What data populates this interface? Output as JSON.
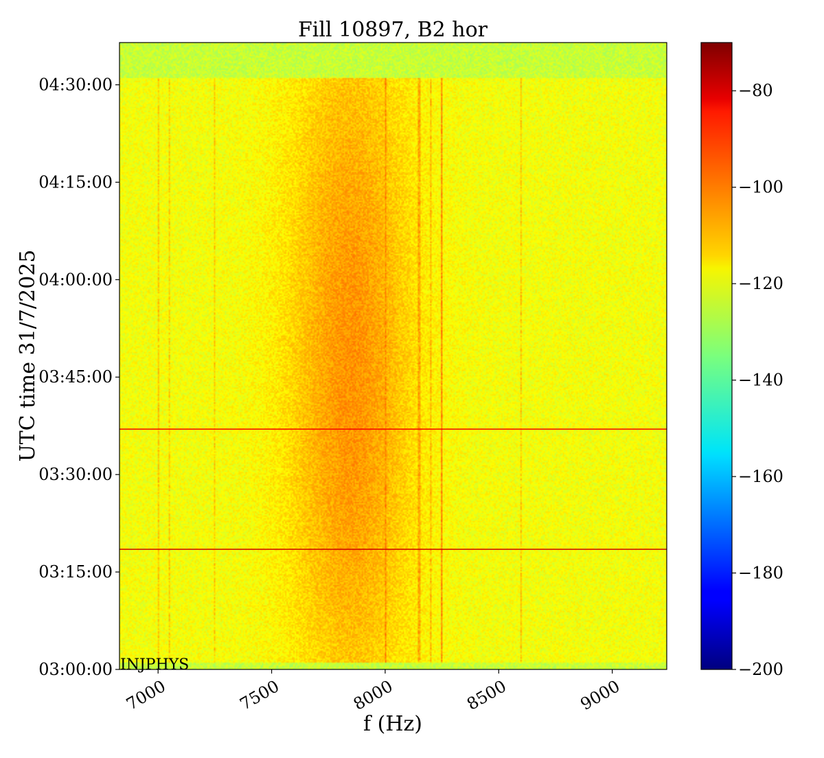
{
  "chart_data": {
    "type": "heatmap",
    "title": "Fill 10897, B2 hor",
    "xlabel": "f (Hz)",
    "ylabel": "UTC time 31/7/2025",
    "xlim": [
      6830,
      9240
    ],
    "ylim": [
      "03:00:00",
      "04:36:30"
    ],
    "x_ticks": [
      {
        "label": "7000",
        "value": 7000
      },
      {
        "label": "7500",
        "value": 7500
      },
      {
        "label": "8000",
        "value": 8000
      },
      {
        "label": "8500",
        "value": 8500
      },
      {
        "label": "9000",
        "value": 9000
      }
    ],
    "y_ticks": [
      {
        "label": "03:00:00",
        "value": "03:00:00"
      },
      {
        "label": "03:15:00",
        "value": "03:15:00"
      },
      {
        "label": "03:30:00",
        "value": "03:30:00"
      },
      {
        "label": "03:45:00",
        "value": "03:45:00"
      },
      {
        "label": "04:00:00",
        "value": "04:00:00"
      },
      {
        "label": "04:15:00",
        "value": "04:15:00"
      },
      {
        "label": "04:30:00",
        "value": "04:30:00"
      }
    ],
    "colorbar": {
      "colormap": "jet",
      "range": [
        -200,
        -70
      ],
      "ticks": [
        {
          "label": "−80",
          "value": -80
        },
        {
          "label": "−100",
          "value": -100
        },
        {
          "label": "−120",
          "value": -120
        },
        {
          "label": "−140",
          "value": -140
        },
        {
          "label": "−160",
          "value": -160
        },
        {
          "label": "−180",
          "value": -180
        },
        {
          "label": "−200",
          "value": -200
        }
      ]
    },
    "background_level": -126,
    "active_period": [
      "03:01:00",
      "04:31:00"
    ],
    "active_level": -120,
    "broadband_hump": {
      "center": 7850,
      "width": 280,
      "max_level": -105
    },
    "vertical_lines": [
      {
        "f": 8000,
        "level": -104
      },
      {
        "f": 8250,
        "level": -103
      },
      {
        "f": 8150,
        "level": -108
      },
      {
        "f": 8200,
        "level": -110
      },
      {
        "f": 7000,
        "level": -112
      },
      {
        "f": 7050,
        "level": -113
      },
      {
        "f": 7250,
        "level": -113
      },
      {
        "f": 8600,
        "level": -112
      }
    ],
    "horizontal_lines": [
      {
        "t": "03:18:30",
        "level": -80
      },
      {
        "t": "03:37:00",
        "level": -85
      }
    ],
    "annotation": "INJPHYS"
  }
}
